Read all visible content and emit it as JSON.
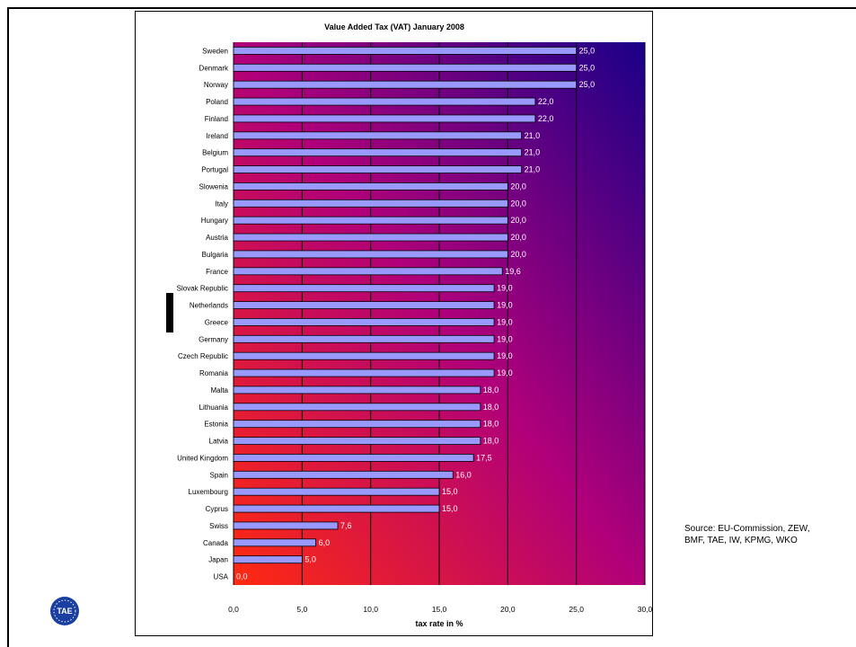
{
  "source": {
    "line1": "Source: EU-Commission, ZEW,",
    "line2": "BMF, TAE, IW, KPMG, WKO"
  },
  "logo": {
    "text": "TAE",
    "color": "#1a3fa0"
  },
  "chart_data": {
    "type": "bar",
    "orientation": "horizontal",
    "title": "Value Added Tax (VAT) January 2008",
    "xlabel": "tax rate in %",
    "ylabel": "",
    "xlim": [
      0,
      30
    ],
    "xticks": [
      "0,0",
      "5,0",
      "10,0",
      "15,0",
      "20,0",
      "25,0",
      "30,0"
    ],
    "grid": "vertical",
    "bar_color": "#9999ff",
    "background_gradient": [
      "#ff2a10",
      "#b0007a",
      "#1a0088"
    ],
    "categories": [
      "Sweden",
      "Denmark",
      "Norway",
      "Poland",
      "Finland",
      "Ireland",
      "Belgium",
      "Portugal",
      "Slowenia",
      "Italy",
      "Hungary",
      "Austria",
      "Bulgaria",
      "France",
      "Slovak Republic",
      "Netherlands",
      "Greece",
      "Germany",
      "Czech Republic",
      "Romania",
      "Malta",
      "Lithuania",
      "Estonia",
      "Latvia",
      "United Kingdom",
      "Spain",
      "Luxembourg",
      "Cyprus",
      "Swiss",
      "Canada",
      "Japan",
      "USA"
    ],
    "values": [
      25.0,
      25.0,
      25.0,
      22.0,
      22.0,
      21.0,
      21.0,
      21.0,
      20.0,
      20.0,
      20.0,
      20.0,
      20.0,
      19.6,
      19.0,
      19.0,
      19.0,
      19.0,
      19.0,
      19.0,
      18.0,
      18.0,
      18.0,
      18.0,
      17.5,
      16.0,
      15.0,
      15.0,
      7.6,
      6.0,
      5.0,
      0.0
    ],
    "labels": [
      "25,0",
      "25,0",
      "25,0",
      "22,0",
      "22,0",
      "21,0",
      "21,0",
      "21,0",
      "20,0",
      "20,0",
      "20,0",
      "20,0",
      "20,0",
      "19,6",
      "19,0",
      "19,0",
      "19,0",
      "19,0",
      "19,0",
      "19,0",
      "18,0",
      "18,0",
      "18,0",
      "18,0",
      "17,5",
      "16,0",
      "15,0",
      "15,0",
      "7,6",
      "6,0",
      "5,0",
      "0,0"
    ]
  }
}
